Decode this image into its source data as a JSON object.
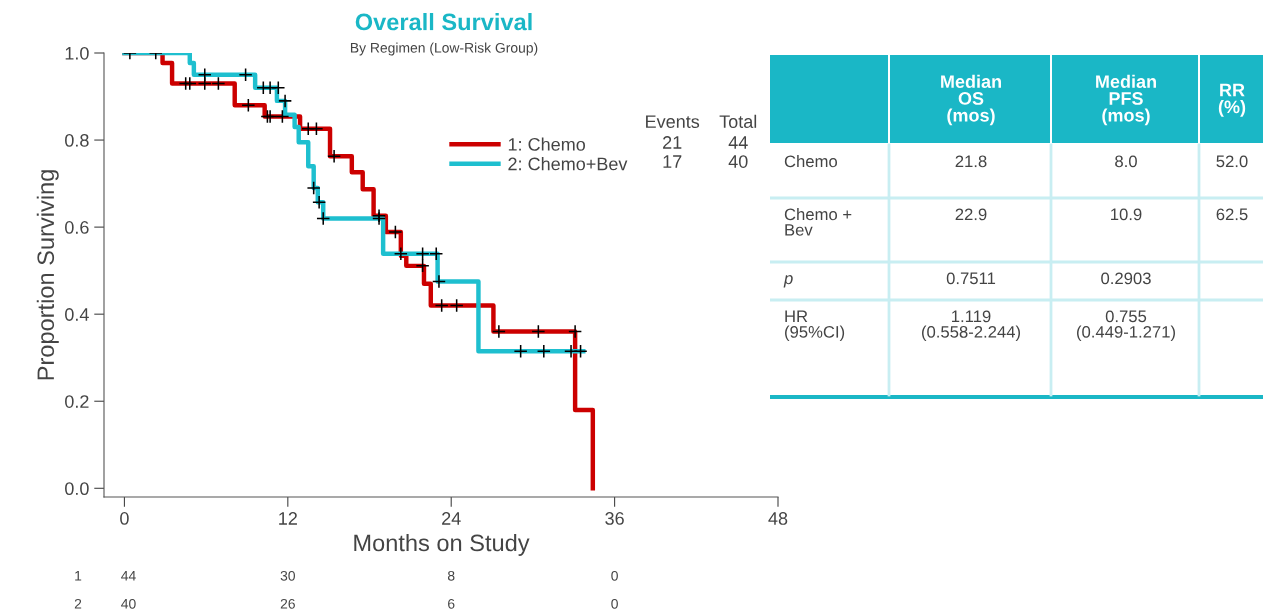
{
  "chart_data": [
    {
      "type": "step",
      "title": "Overall Survival",
      "subtitle": "By Regimen (Low-Risk Group)",
      "xlabel": "Months on Study",
      "ylabel": "Proportion Surviving",
      "xlim": [
        -1.5,
        48
      ],
      "ylim": [
        -0.02,
        1.0
      ],
      "xticks": [
        0,
        12,
        24,
        36,
        48
      ],
      "yticks": [
        {
          "value": 0,
          "label": "0.0"
        },
        {
          "value": 0.2,
          "label": "0.2"
        },
        {
          "value": 0.4,
          "label": "0.4"
        },
        {
          "value": 0.6,
          "label": "0.6"
        },
        {
          "value": 0.8,
          "label": "0.8"
        },
        {
          "value": 1,
          "label": "1.0"
        }
      ],
      "grid": false,
      "legend": "top right",
      "line_style": "solid",
      "series": [
        {
          "name": "1: Chemo",
          "color": "#cc0000",
          "x": [
            0,
            2.8,
            3.5,
            8.1,
            10.3,
            12.9,
            15.1,
            16.7,
            17.5,
            18.3,
            19.2,
            20.3,
            20.7,
            22.0,
            22.5,
            27.1,
            33.1,
            34.4
          ],
          "values": [
            1.0,
            0.977,
            0.93,
            0.88,
            0.854,
            0.826,
            0.763,
            0.726,
            0.687,
            0.626,
            0.589,
            0.534,
            0.511,
            0.47,
            0.42,
            0.36,
            0.18,
            0.0
          ]
        },
        {
          "name": "2: Chemo+Bev",
          "color": "#1ebfcf",
          "x": [
            0,
            4.8,
            5.1,
            9.6,
            11.2,
            11.8,
            12.5,
            12.8,
            13.5,
            13.9,
            14.2,
            14.6,
            19.0,
            23.0,
            26.0,
            33.7
          ],
          "values": [
            1.0,
            0.977,
            0.95,
            0.92,
            0.89,
            0.858,
            0.83,
            0.795,
            0.74,
            0.69,
            0.657,
            0.62,
            0.539,
            0.475,
            0.315,
            0.315
          ]
        },
        {
          "type": "scatter",
          "marker": "cross",
          "color": "#000000",
          "x": [
            0.4,
            2.3,
            4.5,
            4.8,
            5.9,
            6.9,
            9.1,
            10.5,
            10.7,
            11.6,
            13.5,
            14.1,
            15.4,
            18.7,
            19.9,
            21.9,
            23.3,
            24.4,
            27.5,
            30.4,
            33.1
          ],
          "values": [
            1.0,
            1.0,
            0.93,
            0.93,
            0.93,
            0.93,
            0.88,
            0.854,
            0.854,
            0.854,
            0.826,
            0.826,
            0.763,
            0.626,
            0.589,
            0.511,
            0.42,
            0.42,
            0.36,
            0.36,
            0.36
          ]
        },
        {
          "type": "scatter",
          "marker": "cross",
          "color": "#000000",
          "x": [
            5.9,
            8.9,
            10.2,
            10.7,
            11.3,
            11.8,
            13.9,
            14.3,
            14.6,
            18.7,
            20.3,
            21.9,
            22.9,
            23.1,
            29.1,
            30.8,
            32.8,
            33.5
          ],
          "values": [
            0.95,
            0.95,
            0.92,
            0.92,
            0.92,
            0.89,
            0.69,
            0.657,
            0.62,
            0.62,
            0.539,
            0.539,
            0.539,
            0.475,
            0.315,
            0.315,
            0.315,
            0.315
          ]
        }
      ],
      "annotations": [
        "Events",
        "Total",
        "21",
        "44",
        "17",
        "40",
        "1",
        "44",
        "30",
        "8",
        "0",
        "2",
        "40",
        "26",
        "6",
        "0"
      ]
    },
    {
      "type": "other",
      "color": "#1ab7c6",
      "categories": [
        null,
        "Median\nOS\n(mos)",
        "Median\nPFS\n(mos)",
        "RR\n(%)"
      ],
      "y_categories": [
        "Chemo",
        "Chemo +\nBev",
        "p",
        "HR\n(95%CI)"
      ],
      "cell_labels": [
        [
          "21.8",
          "8.0",
          "52.0"
        ],
        [
          "22.9",
          "10.9",
          "62.5"
        ],
        [
          "0.7511",
          "0.2903",
          null
        ],
        [
          "1.119\n(0.558-2.244)",
          "0.755\n(0.449-1.271)",
          null
        ]
      ]
    }
  ]
}
